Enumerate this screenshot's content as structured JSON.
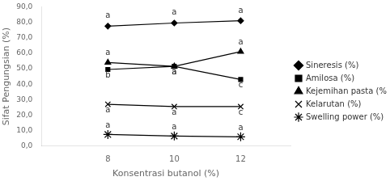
{
  "chart_data": {
    "type": "line",
    "x": [
      8,
      10,
      12
    ],
    "series": [
      {
        "name": "Sineresis (%)",
        "values": [
          77.5,
          79.5,
          81.0
        ],
        "color": "black",
        "marker": "diamond"
      },
      {
        "name": "Amilosa (%)",
        "values": [
          49.5,
          51.5,
          43.0
        ],
        "color": "black",
        "marker": "square"
      },
      {
        "name": "Kejemihan pasta (%T)",
        "values": [
          54.0,
          51.5,
          61.0
        ],
        "color": "black",
        "marker": "triangle"
      },
      {
        "name": "Kelarutan (%)",
        "values": [
          27.0,
          25.5,
          25.5
        ],
        "color": "black",
        "marker": "x"
      },
      {
        "name": "Swelling power (%)",
        "values": [
          7.5,
          6.5,
          6.0
        ],
        "color": "black",
        "marker": "star"
      }
    ],
    "annotations": [
      {
        "text": "a",
        "x": 8,
        "y": 81.5
      },
      {
        "text": "a",
        "x": 10,
        "y": 83.5
      },
      {
        "text": "a",
        "x": 12,
        "y": 85.0
      },
      {
        "text": "b",
        "x": 8,
        "y": 43.0
      },
      {
        "text": "a",
        "x": 10,
        "y": 45.0
      },
      {
        "text": "c",
        "x": 12,
        "y": 36.5
      },
      {
        "text": "a",
        "x": 8,
        "y": 57.5
      },
      {
        "text": "a",
        "x": 10,
        "y": 45.0
      },
      {
        "text": "a",
        "x": 12,
        "y": 64.5
      },
      {
        "text": "a",
        "x": 8,
        "y": 20.5
      },
      {
        "text": "a",
        "x": 10,
        "y": 19.0
      },
      {
        "text": "c",
        "x": 12,
        "y": 19.0
      },
      {
        "text": "a",
        "x": 8,
        "y": 10.5
      },
      {
        "text": "a",
        "x": 10,
        "y": 9.5
      },
      {
        "text": "a",
        "x": 12,
        "y": 9.0
      }
    ],
    "xlabel": "Konsentrasi butanol (%)",
    "ylabel": "Sifat Pengungsian (%)",
    "xlim": [
      6.0,
      13.5
    ],
    "xticks": [
      8,
      10,
      12
    ],
    "ylim": [
      0,
      90
    ],
    "yticks": [
      {
        "value": 0,
        "label": "0,0"
      },
      {
        "value": 10,
        "label": "10,0"
      },
      {
        "value": 20,
        "label": "20,0"
      },
      {
        "value": 30,
        "label": "30,0"
      },
      {
        "value": 40,
        "label": "40,0"
      },
      {
        "value": 50,
        "label": "50,0"
      },
      {
        "value": 60,
        "label": "60,0"
      },
      {
        "value": 70,
        "label": "70,0"
      },
      {
        "value": 80,
        "label": "80,0"
      },
      {
        "value": 90,
        "label": "90,0"
      }
    ],
    "grid": false,
    "legend": "right"
  }
}
